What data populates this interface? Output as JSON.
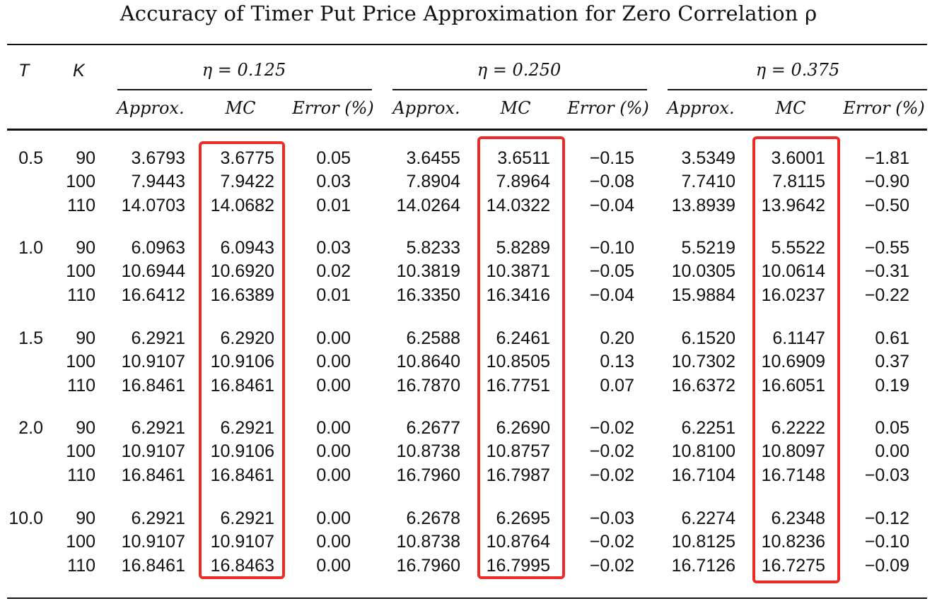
{
  "title": "Accuracy of Timer Put Price Approximation for Zero Correlation ρ",
  "header": {
    "t_label": "T",
    "k_label": "K",
    "groups": [
      "η = 0.125",
      "η = 0.250",
      "η = 0.375"
    ],
    "sub": [
      "Approx.",
      "MC",
      "Error (%)"
    ]
  },
  "highlight_color": "#ee2a24",
  "table": {
    "blocks": [
      {
        "T": "0.5",
        "rows": [
          {
            "K": "90",
            "vals": [
              "3.6793",
              "3.6775",
              "0.05",
              "3.6455",
              "3.6511",
              "−0.15",
              "3.5349",
              "3.6001",
              "−1.81"
            ]
          },
          {
            "K": "100",
            "vals": [
              "7.9443",
              "7.9422",
              "0.03",
              "7.8904",
              "7.8964",
              "−0.08",
              "7.7410",
              "7.8115",
              "−0.90"
            ]
          },
          {
            "K": "110",
            "vals": [
              "14.0703",
              "14.0682",
              "0.01",
              "14.0264",
              "14.0322",
              "−0.04",
              "13.8939",
              "13.9642",
              "−0.50"
            ]
          }
        ]
      },
      {
        "T": "1.0",
        "rows": [
          {
            "K": "90",
            "vals": [
              "6.0963",
              "6.0943",
              "0.03",
              "5.8233",
              "5.8289",
              "−0.10",
              "5.5219",
              "5.5522",
              "−0.55"
            ]
          },
          {
            "K": "100",
            "vals": [
              "10.6944",
              "10.6920",
              "0.02",
              "10.3819",
              "10.3871",
              "−0.05",
              "10.0305",
              "10.0614",
              "−0.31"
            ]
          },
          {
            "K": "110",
            "vals": [
              "16.6412",
              "16.6389",
              "0.01",
              "16.3350",
              "16.3416",
              "−0.04",
              "15.9884",
              "16.0237",
              "−0.22"
            ]
          }
        ]
      },
      {
        "T": "1.5",
        "rows": [
          {
            "K": "90",
            "vals": [
              "6.2921",
              "6.2920",
              "0.00",
              "6.2588",
              "6.2461",
              "0.20",
              "6.1520",
              "6.1147",
              "0.61"
            ]
          },
          {
            "K": "100",
            "vals": [
              "10.9107",
              "10.9106",
              "0.00",
              "10.8640",
              "10.8505",
              "0.13",
              "10.7302",
              "10.6909",
              "0.37"
            ]
          },
          {
            "K": "110",
            "vals": [
              "16.8461",
              "16.8461",
              "0.00",
              "16.7870",
              "16.7751",
              "0.07",
              "16.6372",
              "16.6051",
              "0.19"
            ]
          }
        ]
      },
      {
        "T": "2.0",
        "rows": [
          {
            "K": "90",
            "vals": [
              "6.2921",
              "6.2921",
              "0.00",
              "6.2677",
              "6.2690",
              "−0.02",
              "6.2251",
              "6.2222",
              "0.05"
            ]
          },
          {
            "K": "100",
            "vals": [
              "10.9107",
              "10.9106",
              "0.00",
              "10.8738",
              "10.8757",
              "−0.02",
              "10.8100",
              "10.8097",
              "0.00"
            ]
          },
          {
            "K": "110",
            "vals": [
              "16.8461",
              "16.8461",
              "0.00",
              "16.7960",
              "16.7987",
              "−0.02",
              "16.7104",
              "16.7148",
              "−0.03"
            ]
          }
        ]
      },
      {
        "T": "10.0",
        "rows": [
          {
            "K": "90",
            "vals": [
              "6.2921",
              "6.2921",
              "0.00",
              "6.2678",
              "6.2695",
              "−0.03",
              "6.2274",
              "6.2348",
              "−0.12"
            ]
          },
          {
            "K": "100",
            "vals": [
              "10.9107",
              "10.9107",
              "0.00",
              "10.8738",
              "10.8764",
              "−0.02",
              "10.8125",
              "10.8236",
              "−0.10"
            ]
          },
          {
            "K": "110",
            "vals": [
              "16.8461",
              "16.8463",
              "0.00",
              "16.7960",
              "16.7995",
              "−0.02",
              "16.7126",
              "16.7275",
              "−0.09"
            ]
          }
        ]
      }
    ]
  }
}
